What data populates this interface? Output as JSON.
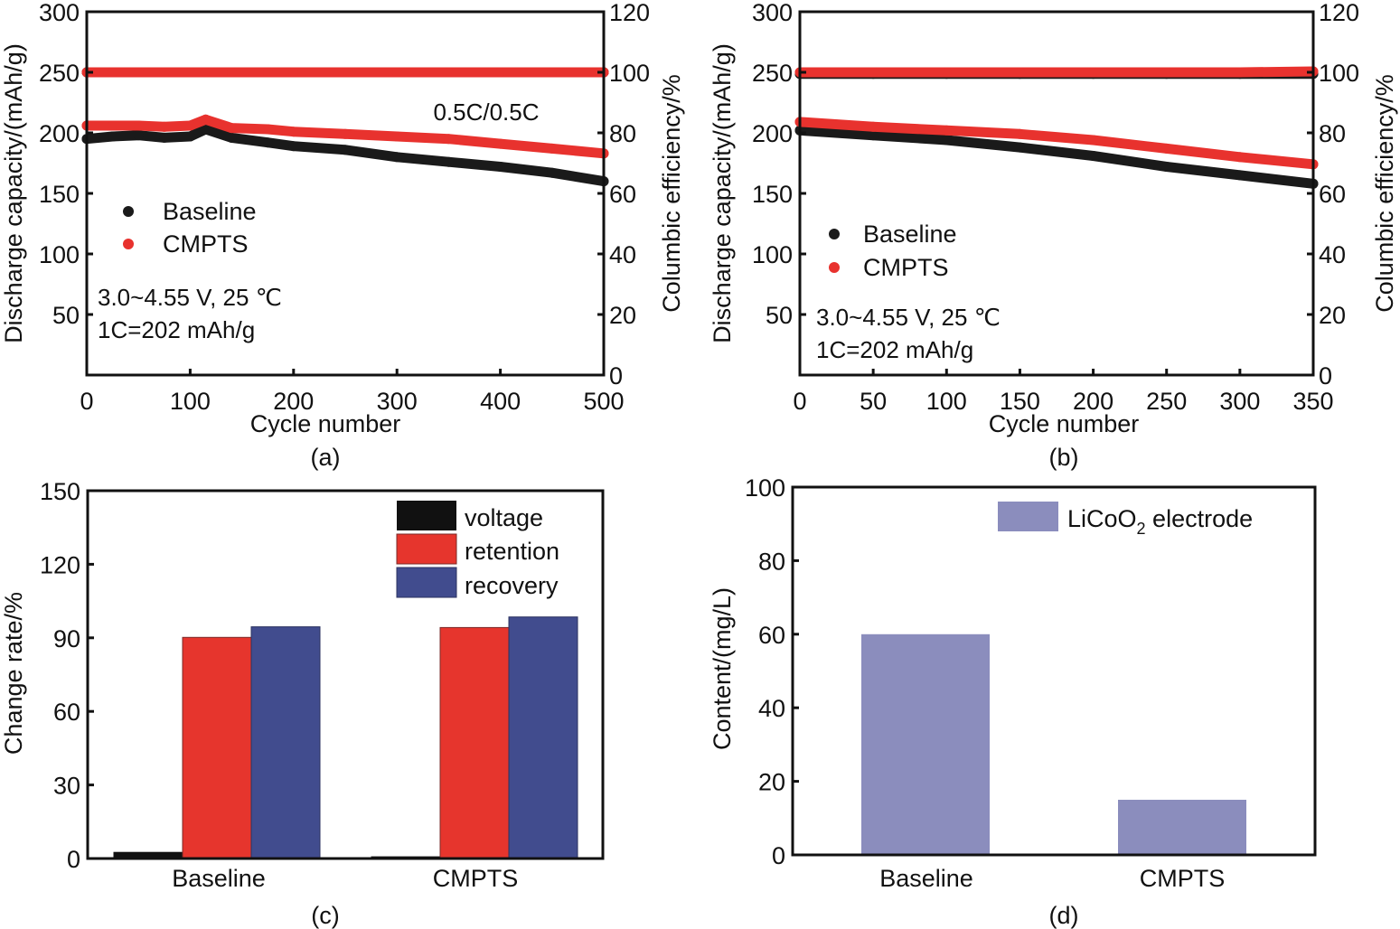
{
  "chart_data": [
    {
      "panel": "(a)",
      "type": "scatter",
      "xlabel": "Cycle number",
      "ylabel": "Discharge capacity/(mAh/g)",
      "y2label": "Columbic efficiency/%",
      "xlim": [
        0,
        500
      ],
      "ylim": [
        0,
        300
      ],
      "y2lim": [
        0,
        120
      ],
      "xticks": [
        "0",
        "100",
        "200",
        "300",
        "400",
        "500"
      ],
      "yticks": [
        "50",
        "100",
        "150",
        "200",
        "250",
        "300"
      ],
      "y2ticks": [
        "0",
        "20",
        "40",
        "60",
        "80",
        "100",
        "120"
      ],
      "legend": {
        "position": "middle-left",
        "entries": [
          "Baseline",
          "CMPTS"
        ]
      },
      "annotations": [
        "0.5C/0.5C",
        "3.0~4.55 V, 25 ℃",
        "1C=202 mAh/g"
      ],
      "x": [
        0,
        25,
        50,
        75,
        100,
        115,
        140,
        175,
        200,
        250,
        300,
        350,
        400,
        450,
        500
      ],
      "series": [
        {
          "name": "Baseline",
          "axis": "capacity",
          "color": "#1a1a1a",
          "values": [
            195,
            197,
            198,
            196,
            197,
            203,
            196,
            192,
            189,
            186,
            180,
            176,
            172,
            167,
            160
          ]
        },
        {
          "name": "CMPTS",
          "axis": "capacity",
          "color": "#e8322e",
          "values": [
            206,
            206,
            206,
            205,
            206,
            211,
            204,
            203,
            201,
            199,
            197,
            195,
            191,
            187,
            183
          ]
        },
        {
          "name": "Baseline",
          "axis": "efficiency",
          "color": "#1a1a1a",
          "values": [
            100,
            100,
            100,
            100,
            100,
            100,
            100,
            100,
            100,
            100,
            100,
            100,
            100,
            100,
            100
          ]
        },
        {
          "name": "CMPTS",
          "axis": "efficiency",
          "color": "#e8322e",
          "values": [
            100,
            100,
            100,
            100,
            100,
            100,
            100,
            100,
            100,
            100,
            100,
            100,
            100,
            100,
            100
          ]
        }
      ]
    },
    {
      "panel": "(b)",
      "type": "scatter",
      "xlabel": "Cycle number",
      "ylabel": "Discharge capacity/(mAh/g)",
      "y2label": "Columbic efficiency/%",
      "xlim": [
        0,
        350
      ],
      "ylim": [
        0,
        300
      ],
      "y2lim": [
        0,
        120
      ],
      "xticks": [
        "0",
        "50",
        "100",
        "150",
        "200",
        "250",
        "300",
        "350"
      ],
      "yticks": [
        "50",
        "100",
        "150",
        "200",
        "250",
        "300"
      ],
      "y2ticks": [
        "0",
        "20",
        "40",
        "60",
        "80",
        "100",
        "120"
      ],
      "legend": {
        "position": "middle-left",
        "entries": [
          "Baseline",
          "CMPTS"
        ]
      },
      "annotations": [
        "3.0~4.55 V, 25 ℃",
        "1C=202 mAh/g"
      ],
      "x": [
        0,
        50,
        100,
        150,
        200,
        250,
        300,
        350
      ],
      "series": [
        {
          "name": "Baseline",
          "axis": "capacity",
          "color": "#1a1a1a",
          "values": [
            202,
            198,
            194,
            188,
            181,
            172,
            165,
            158
          ]
        },
        {
          "name": "CMPTS",
          "axis": "capacity",
          "color": "#e8322e",
          "values": [
            209,
            205,
            202,
            199,
            194,
            187,
            180,
            174
          ]
        },
        {
          "name": "Baseline",
          "axis": "efficiency",
          "color": "#1a1a1a",
          "values": [
            99.5,
            99.5,
            99.5,
            99.5,
            99.5,
            99.5,
            99.5,
            99.5
          ]
        },
        {
          "name": "CMPTS",
          "axis": "efficiency",
          "color": "#e8322e",
          "values": [
            100,
            100,
            100,
            100,
            100,
            100,
            100,
            100.3
          ]
        }
      ]
    },
    {
      "panel": "(c)",
      "type": "bar",
      "xlabel": "",
      "ylabel": "Change rate/%",
      "ylim": [
        0,
        150
      ],
      "yticks": [
        "0",
        "30",
        "60",
        "90",
        "120",
        "150"
      ],
      "categories": [
        "Baseline",
        "CMPTS"
      ],
      "legend": {
        "position": "top-right",
        "entries": [
          "voltage",
          "retention",
          "recovery"
        ]
      },
      "series": [
        {
          "name": "voltage",
          "color": "#111111",
          "values": [
            2.5,
            0.7
          ]
        },
        {
          "name": "retention",
          "color": "#e6352d",
          "values": [
            90.2,
            94.2
          ]
        },
        {
          "name": "recovery",
          "color": "#414c8e",
          "values": [
            94.5,
            98.5
          ]
        }
      ]
    },
    {
      "panel": "(d)",
      "type": "bar",
      "xlabel": "",
      "ylabel": "Content/(mg/L)",
      "ylim": [
        0,
        100
      ],
      "yticks": [
        "0",
        "20",
        "40",
        "60",
        "80",
        "100"
      ],
      "categories": [
        "Baseline",
        "CMPTS"
      ],
      "legend": {
        "position": "top-right",
        "entries": [
          "LiCoO2 electrode"
        ]
      },
      "legend_parts": {
        "pre": "LiCoO",
        "sub": "2",
        "post": " electrode"
      },
      "series": [
        {
          "name": "LiCoO2 electrode",
          "color": "#8b8dbd",
          "values": [
            60,
            15
          ]
        }
      ]
    }
  ]
}
